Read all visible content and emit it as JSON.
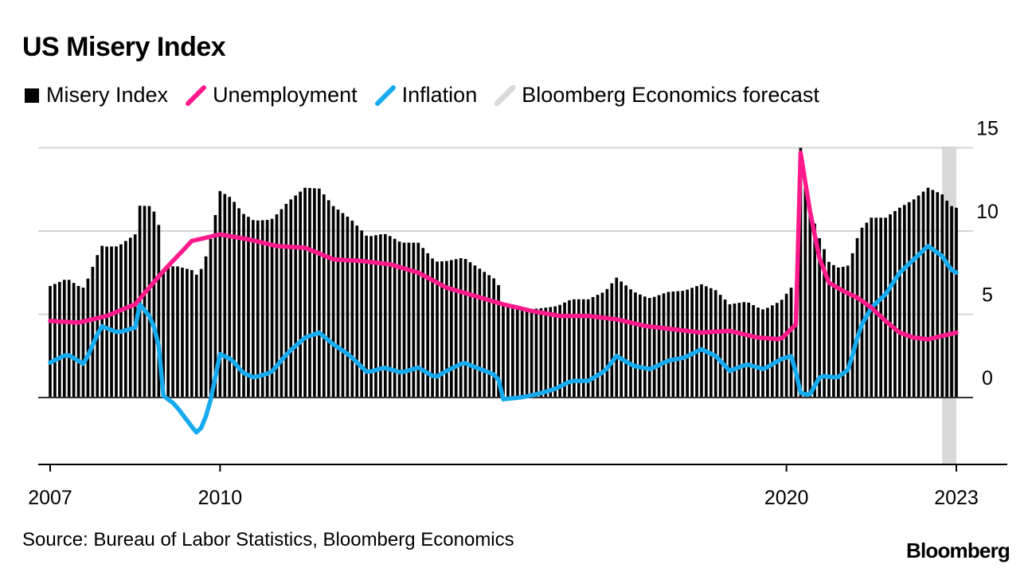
{
  "colors": {
    "misery": "#000000",
    "unemployment": "#ff1a8c",
    "inflation": "#16aaee",
    "forecast": "#d9d9d9",
    "grid": "#d4d4d4",
    "axis": "#000000"
  },
  "chart_data": {
    "type": "bar",
    "title": "US Misery Index",
    "source": "Source: Bureau of Labor Statistics, Bloomberg Economics",
    "brand": "Bloomberg",
    "legend": [
      {
        "name": "Misery Index",
        "marker": "square"
      },
      {
        "name": "Unemployment",
        "marker": "line"
      },
      {
        "name": "Inflation",
        "marker": "line"
      },
      {
        "name": "Bloomberg Economics forecast",
        "marker": "band"
      }
    ],
    "x_start": 2007,
    "x_end": 2023,
    "x_ticks": [
      {
        "value": 2007,
        "label": "2007"
      },
      {
        "value": 2010,
        "label": "2010"
      },
      {
        "value": 2020,
        "label": "2020"
      },
      {
        "value": 2023,
        "label": "2023"
      }
    ],
    "y_ticks": [
      0,
      5,
      10,
      15
    ],
    "ylim": [
      -4,
      15
    ],
    "forecast_range": [
      2022.75,
      2023.0
    ],
    "anchors": {
      "unemployment": [
        [
          2007.0,
          4.6
        ],
        [
          2007.5,
          4.5
        ],
        [
          2008.0,
          4.9
        ],
        [
          2008.5,
          5.6
        ],
        [
          2009.0,
          7.6
        ],
        [
          2009.5,
          9.4
        ],
        [
          2010.0,
          9.8
        ],
        [
          2010.5,
          9.5
        ],
        [
          2011.0,
          9.1
        ],
        [
          2011.5,
          9.0
        ],
        [
          2012.0,
          8.3
        ],
        [
          2012.5,
          8.2
        ],
        [
          2013.0,
          8.0
        ],
        [
          2013.5,
          7.5
        ],
        [
          2014.0,
          6.6
        ],
        [
          2014.5,
          6.1
        ],
        [
          2015.0,
          5.6
        ],
        [
          2015.5,
          5.2
        ],
        [
          2016.0,
          4.9
        ],
        [
          2016.5,
          4.9
        ],
        [
          2017.0,
          4.7
        ],
        [
          2017.5,
          4.3
        ],
        [
          2018.0,
          4.1
        ],
        [
          2018.5,
          3.9
        ],
        [
          2019.0,
          4.0
        ],
        [
          2019.5,
          3.6
        ],
        [
          2019.9,
          3.5
        ],
        [
          2020.17,
          4.4
        ],
        [
          2020.25,
          14.7
        ],
        [
          2020.42,
          11.1
        ],
        [
          2020.58,
          8.4
        ],
        [
          2020.75,
          6.9
        ],
        [
          2021.0,
          6.4
        ],
        [
          2021.25,
          6.0
        ],
        [
          2021.5,
          5.4
        ],
        [
          2021.75,
          4.6
        ],
        [
          2022.0,
          3.9
        ],
        [
          2022.25,
          3.6
        ],
        [
          2022.5,
          3.5
        ],
        [
          2022.75,
          3.7
        ],
        [
          2023.0,
          3.9
        ]
      ],
      "inflation": [
        [
          2007.0,
          2.1
        ],
        [
          2007.3,
          2.6
        ],
        [
          2007.6,
          2.0
        ],
        [
          2007.9,
          4.3
        ],
        [
          2008.2,
          3.9
        ],
        [
          2008.5,
          4.2
        ],
        [
          2008.58,
          5.6
        ],
        [
          2008.75,
          4.9
        ],
        [
          2008.9,
          3.7
        ],
        [
          2009.0,
          0.1
        ],
        [
          2009.2,
          -0.4
        ],
        [
          2009.4,
          -1.3
        ],
        [
          2009.58,
          -2.1
        ],
        [
          2009.7,
          -1.7
        ],
        [
          2009.83,
          -0.2
        ],
        [
          2010.0,
          2.6
        ],
        [
          2010.2,
          2.3
        ],
        [
          2010.4,
          1.5
        ],
        [
          2010.6,
          1.2
        ],
        [
          2010.9,
          1.5
        ],
        [
          2011.2,
          2.7
        ],
        [
          2011.5,
          3.6
        ],
        [
          2011.75,
          3.9
        ],
        [
          2012.0,
          3.2
        ],
        [
          2012.3,
          2.5
        ],
        [
          2012.6,
          1.5
        ],
        [
          2012.9,
          1.8
        ],
        [
          2013.2,
          1.5
        ],
        [
          2013.5,
          1.8
        ],
        [
          2013.8,
          1.2
        ],
        [
          2014.0,
          1.6
        ],
        [
          2014.3,
          2.1
        ],
        [
          2014.6,
          1.7
        ],
        [
          2014.9,
          1.3
        ],
        [
          2015.0,
          -0.1
        ],
        [
          2015.3,
          0.0
        ],
        [
          2015.6,
          0.2
        ],
        [
          2015.9,
          0.5
        ],
        [
          2016.2,
          1.0
        ],
        [
          2016.5,
          1.0
        ],
        [
          2016.8,
          1.6
        ],
        [
          2017.0,
          2.5
        ],
        [
          2017.3,
          1.9
        ],
        [
          2017.6,
          1.7
        ],
        [
          2017.9,
          2.2
        ],
        [
          2018.2,
          2.4
        ],
        [
          2018.5,
          2.9
        ],
        [
          2018.75,
          2.5
        ],
        [
          2019.0,
          1.6
        ],
        [
          2019.3,
          2.0
        ],
        [
          2019.6,
          1.7
        ],
        [
          2019.9,
          2.3
        ],
        [
          2020.1,
          2.5
        ],
        [
          2020.25,
          0.3
        ],
        [
          2020.4,
          0.1
        ],
        [
          2020.6,
          1.3
        ],
        [
          2020.9,
          1.2
        ],
        [
          2021.1,
          1.7
        ],
        [
          2021.3,
          4.2
        ],
        [
          2021.5,
          5.4
        ],
        [
          2021.75,
          6.2
        ],
        [
          2022.0,
          7.5
        ],
        [
          2022.25,
          8.3
        ],
        [
          2022.5,
          9.1
        ],
        [
          2022.75,
          8.5
        ],
        [
          2022.9,
          7.7
        ],
        [
          2023.0,
          7.5
        ]
      ]
    },
    "misery_index_note": "Misery Index = Unemployment + Inflation (monthly bars)"
  },
  "series_labels": {
    "misery": "Misery Index",
    "unemployment": "Unemployment",
    "inflation": "Inflation"
  }
}
